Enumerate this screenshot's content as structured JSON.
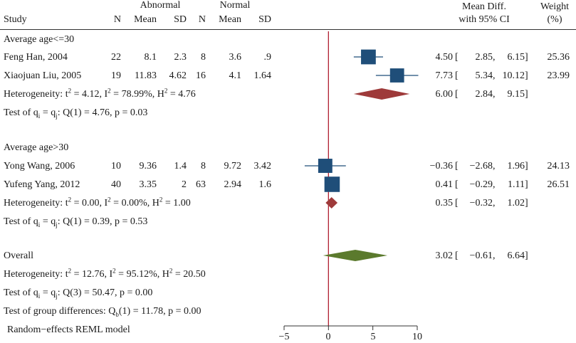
{
  "headers": {
    "study": "Study",
    "abnormal": "Abnormal",
    "normal": "Normal",
    "n1": "N",
    "mean1": "Mean",
    "sd1": "SD",
    "n2": "N",
    "mean2": "Mean",
    "sd2": "SD",
    "md_line1": "Mean Diff.",
    "md_line2": "with 95% CI",
    "w_line1": "Weight",
    "w_line2": "(%)"
  },
  "groups": [
    {
      "title": "Average age<=30",
      "studies": [
        {
          "name": "Feng Han, 2004",
          "n1": "22",
          "mean1": "8.1",
          "sd1": "2.3",
          "n2": "8",
          "mean2": "3.6",
          "sd2": ".9",
          "est": 4.5,
          "lo": 2.85,
          "hi": 6.15,
          "est_txt": "4.50",
          "lo_txt": "2.85",
          "hi_txt": "6.15",
          "weight": "25.36"
        },
        {
          "name": "Xiaojuan Liu, 2005",
          "n1": "19",
          "mean1": "11.83",
          "sd1": "4.62",
          "n2": "16",
          "mean2": "4.1",
          "sd2": "1.64",
          "est": 7.73,
          "lo": 5.34,
          "hi": 10.12,
          "est_txt": "7.73",
          "lo_txt": "5.34",
          "hi_txt": "10.12",
          "weight": "23.99"
        }
      ],
      "subtotal": {
        "est": 6.0,
        "lo": 2.84,
        "hi": 9.15,
        "est_txt": "6.00",
        "lo_txt": "2.84",
        "hi_txt": "9.15"
      },
      "het": {
        "t2": "4.12",
        "i2": "78.99%",
        "h2": "4.76"
      },
      "test": "Q(1) = 4.76, p = 0.03"
    },
    {
      "title": "Average age>30",
      "studies": [
        {
          "name": "Yong Wang, 2006",
          "n1": "10",
          "mean1": "9.36",
          "sd1": "1.4",
          "n2": "8",
          "mean2": "9.72",
          "sd2": "3.42",
          "est": -0.36,
          "lo": -2.68,
          "hi": 1.96,
          "est_txt": "−0.36",
          "lo_txt": "−2.68",
          "hi_txt": "1.96",
          "weight": "24.13"
        },
        {
          "name": "Yufeng Yang, 2012",
          "n1": "40",
          "mean1": "3.35",
          "sd1": "2",
          "n2": "63",
          "mean2": "2.94",
          "sd2": "1.6",
          "est": 0.41,
          "lo": -0.29,
          "hi": 1.11,
          "est_txt": "0.41",
          "lo_txt": "−0.29",
          "hi_txt": "1.11",
          "weight": "26.51"
        }
      ],
      "subtotal": {
        "est": 0.35,
        "lo": -0.32,
        "hi": 1.02,
        "est_txt": "0.35",
        "lo_txt": "−0.32",
        "hi_txt": "1.02"
      },
      "het": {
        "t2": "0.00",
        "i2": "0.00%",
        "h2": "1.00"
      },
      "test": "Q(1) = 0.39, p = 0.53"
    }
  ],
  "overall": {
    "label": "Overall",
    "est": 3.02,
    "lo": -0.61,
    "hi": 6.64,
    "est_txt": "3.02",
    "lo_txt": "−0.61",
    "hi_txt": "6.64",
    "het": {
      "t2": "12.76",
      "i2": "95.12%",
      "h2": "20.50"
    },
    "test": "Q(3) = 50.47, p = 0.00",
    "group_diff": "(1) = 11.78, p = 0.00"
  },
  "labels": {
    "heterogeneity": "Heterogeneity: ",
    "test_prefix": "Test of q",
    "group_diff_prefix": "Test of group differences: Q",
    "group_diff_sub": "b",
    "model": "Random−effects REML model"
  },
  "chart_data": {
    "type": "forest",
    "xlim": [
      -5,
      10
    ],
    "xticks": [
      -5,
      0,
      5,
      10
    ],
    "xtick_labels": [
      "−5",
      "0",
      "5",
      "10"
    ],
    "reference_line": 0,
    "colors": {
      "box": "#1f4e79",
      "subgroup_diamond": "#9e3a3a",
      "overall_diamond": "#5b7a2d",
      "refline": "#b02030",
      "axis": "#333333"
    }
  }
}
